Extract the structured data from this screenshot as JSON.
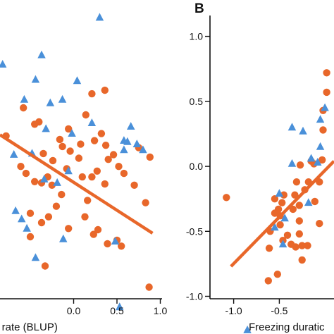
{
  "chart_data": [
    {
      "type": "scatter",
      "panel_label": "",
      "xlabel": "y rate (BLUP)",
      "ylabel": "",
      "xlim": [
        -0.85,
        1.02
      ],
      "ylim": [
        -1.45,
        1.4
      ],
      "x_ticks": [
        "0.0",
        "0.5",
        "1.0"
      ],
      "x_tick_values": [
        0.0,
        0.5,
        1.0
      ],
      "y_ticks": [],
      "grid": false,
      "colors": {
        "orange": "#E8672A",
        "blue": "#4A90D9"
      },
      "series": [
        {
          "marker": "circle",
          "color": "#E8672A",
          "points": [
            [
              -0.78,
              0.24
            ],
            [
              -0.4,
              0.36
            ],
            [
              -0.06,
              0.3
            ],
            [
              0.21,
              0.6
            ],
            [
              0.14,
              0.42
            ],
            [
              0.32,
              0.26
            ],
            [
              0.36,
              0.63
            ],
            [
              -0.58,
              0.48
            ],
            [
              -0.45,
              0.34
            ],
            [
              -0.35,
              0.09
            ],
            [
              -0.25,
              -0.18
            ],
            [
              -0.16,
              0.21
            ],
            [
              0.08,
              0.17
            ],
            [
              0.24,
              0.2
            ],
            [
              0.37,
              0.16
            ],
            [
              -0.24,
              0.03
            ],
            [
              -0.04,
              0.11
            ],
            [
              -0.13,
              0.15
            ],
            [
              0.06,
              0.05
            ],
            [
              -0.61,
              -0.02
            ],
            [
              -0.55,
              -0.08
            ],
            [
              -0.45,
              -0.15
            ],
            [
              -0.37,
              -0.16
            ],
            [
              -0.3,
              -0.11
            ],
            [
              -0.14,
              -0.26
            ],
            [
              -0.08,
              -0.04
            ],
            [
              0.1,
              -0.11
            ],
            [
              0.16,
              -0.31
            ],
            [
              0.21,
              -0.11
            ],
            [
              0.27,
              -0.06
            ],
            [
              0.36,
              -0.17
            ],
            [
              0.4,
              0.04
            ],
            [
              0.46,
              0.08
            ],
            [
              0.52,
              -0.02
            ],
            [
              0.58,
              -0.08
            ],
            [
              0.7,
              -0.18
            ],
            [
              0.75,
              0.14
            ],
            [
              0.83,
              -0.33
            ],
            [
              0.88,
              0.06
            ],
            [
              -0.5,
              -0.42
            ],
            [
              -0.37,
              -0.5
            ],
            [
              -0.29,
              -0.45
            ],
            [
              -0.06,
              -0.55
            ],
            [
              0.13,
              -0.45
            ],
            [
              0.23,
              -0.6
            ],
            [
              0.39,
              -0.68
            ],
            [
              0.5,
              -0.65
            ],
            [
              0.55,
              -0.7
            ],
            [
              -0.33,
              -0.87
            ],
            [
              0.28,
              -0.56
            ],
            [
              0.87,
              -1.05
            ],
            [
              -0.5,
              -0.62
            ],
            [
              -0.2,
              -0.36
            ]
          ]
        },
        {
          "marker": "triangle",
          "color": "#4A90D9",
          "points": [
            [
              -0.82,
              0.85
            ],
            [
              -0.37,
              0.93
            ],
            [
              0.3,
              1.25
            ],
            [
              -0.44,
              0.72
            ],
            [
              -0.27,
              0.52
            ],
            [
              -0.13,
              0.55
            ],
            [
              0.04,
              0.71
            ],
            [
              -0.57,
              0.55
            ],
            [
              -0.32,
              0.3
            ],
            [
              0.21,
              0.35
            ],
            [
              -0.02,
              0.26
            ],
            [
              0.62,
              0.19
            ],
            [
              0.58,
              0.2
            ],
            [
              0.66,
              0.32
            ],
            [
              0.73,
              0.17
            ],
            [
              -0.69,
              0.08
            ],
            [
              -0.48,
              0.09
            ],
            [
              -0.06,
              -0.06
            ],
            [
              -0.34,
              -0.13
            ],
            [
              -0.19,
              -0.16
            ],
            [
              0.8,
              0.12
            ],
            [
              -0.67,
              -0.4
            ],
            [
              -0.6,
              -0.47
            ],
            [
              -0.54,
              -0.55
            ],
            [
              0.48,
              -0.66
            ],
            [
              -0.12,
              -0.64
            ],
            [
              0.53,
              -1.22
            ],
            [
              -0.44,
              -0.8
            ],
            [
              0.58,
              0.12
            ]
          ]
        }
      ],
      "trend_line": {
        "color": "#E8672A",
        "x": [
          -0.85,
          0.91
        ],
        "y": [
          0.25,
          -0.59
        ]
      }
    },
    {
      "type": "scatter",
      "panel_label": "B",
      "xlabel": "Freezing duratic",
      "ylabel": "",
      "xlim": [
        -1.26,
        0.1
      ],
      "ylim": [
        -1.29,
        1.28
      ],
      "x_ticks": [
        "-1.0",
        "-0.5"
      ],
      "x_tick_values": [
        -1.0,
        -0.5
      ],
      "y_ticks": [
        "1.0",
        "0.5",
        "0.0",
        "-0.5",
        "-1.0"
      ],
      "y_tick_values": [
        1.0,
        0.5,
        0.0,
        -0.5,
        -1.0
      ],
      "grid": false,
      "series": [
        {
          "marker": "circle",
          "color": "#E8672A",
          "points": [
            [
              -1.08,
              -0.24
            ],
            [
              -0.62,
              -0.88
            ],
            [
              -0.52,
              -0.83
            ],
            [
              -0.61,
              -0.63
            ],
            [
              -0.6,
              -0.5
            ],
            [
              -0.49,
              -0.45
            ],
            [
              -0.49,
              -0.38
            ],
            [
              -0.51,
              -0.33
            ],
            [
              -0.47,
              -0.28
            ],
            [
              -0.45,
              -0.22
            ],
            [
              -0.55,
              -0.25
            ],
            [
              -0.55,
              -0.36
            ],
            [
              -0.46,
              -0.57
            ],
            [
              -0.37,
              -0.6
            ],
            [
              -0.32,
              -0.62
            ],
            [
              -0.41,
              -0.53
            ],
            [
              -0.28,
              -0.52
            ],
            [
              -0.25,
              -0.61
            ],
            [
              -0.25,
              -0.72
            ],
            [
              -0.19,
              -0.61
            ],
            [
              -0.28,
              -0.42
            ],
            [
              -0.28,
              -0.3
            ],
            [
              -0.35,
              -0.33
            ],
            [
              -0.31,
              -0.12
            ],
            [
              -0.22,
              -0.18
            ],
            [
              -0.27,
              0.01
            ],
            [
              -0.15,
              0.04
            ],
            [
              -0.12,
              0.02
            ],
            [
              -0.06,
              -0.12
            ],
            [
              -0.11,
              -0.27
            ],
            [
              -0.06,
              -0.44
            ],
            [
              -0.33,
              -0.22
            ],
            [
              -0.18,
              -0.12
            ],
            [
              -0.03,
              0.05
            ],
            [
              -0.02,
              0.28
            ],
            [
              -0.02,
              0.43
            ],
            [
              0.02,
              0.57
            ],
            [
              0.02,
              0.72
            ]
          ]
        },
        {
          "marker": "triangle",
          "color": "#4A90D9",
          "points": [
            [
              -0.85,
              -1.26
            ],
            [
              -0.36,
              0.3
            ],
            [
              -0.24,
              0.27
            ],
            [
              -0.15,
              0.06
            ],
            [
              -0.08,
              0.03
            ],
            [
              -0.46,
              -0.6
            ],
            [
              -0.5,
              -0.21
            ],
            [
              -0.18,
              -0.28
            ],
            [
              -0.55,
              -0.47
            ],
            [
              -0.05,
              0.36
            ],
            [
              -0.36,
              0.02
            ],
            [
              -0.05,
              0.15
            ],
            [
              -0.44,
              -0.4
            ],
            [
              0.0,
              0.45
            ]
          ]
        }
      ],
      "trend_line": {
        "color": "#E8672A",
        "x": [
          -1.03,
          0.1
        ],
        "y": [
          -0.77,
          0.04
        ]
      }
    }
  ]
}
